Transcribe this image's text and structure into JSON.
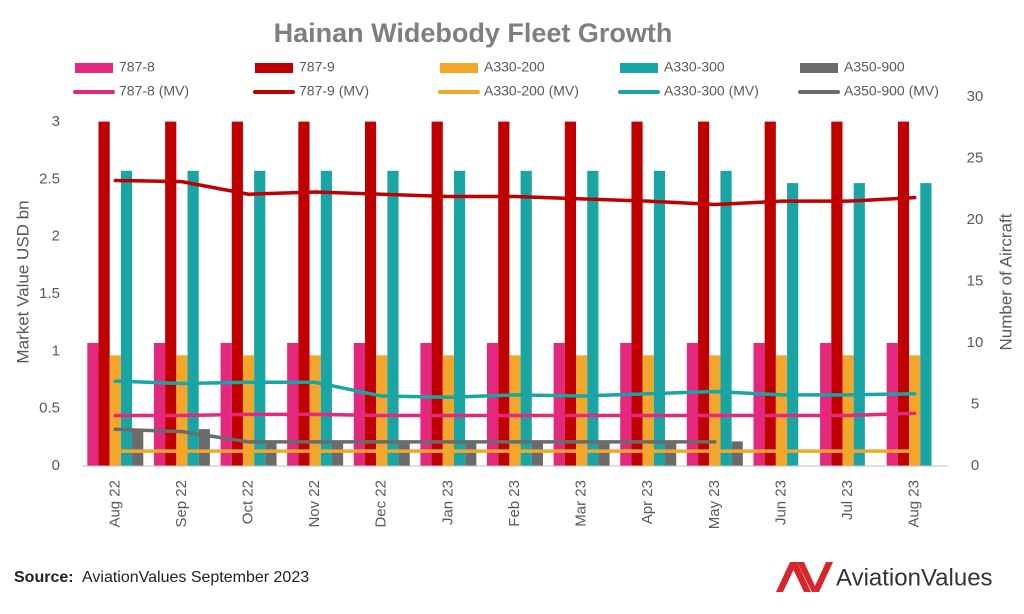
{
  "chart_data": {
    "type": "bar",
    "title": "Hainan Widebody Fleet Growth",
    "y_label": "Market Value USD bn",
    "y2_label": "Number of Aircraft",
    "categories": [
      "Aug 22",
      "Sep 22",
      "Oct 22",
      "Nov 22",
      "Dec 22",
      "Jan 23",
      "Feb 23",
      "Mar 23",
      "Apr 23",
      "May 23",
      "Jun 23",
      "Jul 23",
      "Aug 23"
    ],
    "ylim": [
      0,
      3
    ],
    "yticks": [
      0,
      0.5,
      1,
      1.5,
      2,
      2.5,
      3
    ],
    "y2lim": [
      0,
      30
    ],
    "y2ticks": [
      0,
      5,
      10,
      15,
      20,
      25,
      30
    ],
    "series": [
      {
        "name": "787-8",
        "type": "bar",
        "axis": "y2",
        "color": "#e3287e",
        "values": [
          10,
          10,
          10,
          10,
          10,
          10,
          10,
          10,
          10,
          10,
          10,
          10,
          10
        ]
      },
      {
        "name": "787-9",
        "type": "bar",
        "axis": "y2",
        "color": "#c00000",
        "values": [
          28,
          28,
          28,
          28,
          28,
          28,
          28,
          28,
          28,
          28,
          28,
          28,
          28
        ]
      },
      {
        "name": "A330-200",
        "type": "bar",
        "axis": "y2",
        "color": "#f2a72a",
        "values": [
          9,
          9,
          9,
          9,
          9,
          9,
          9,
          9,
          9,
          9,
          9,
          9,
          9
        ]
      },
      {
        "name": "A330-300",
        "type": "bar",
        "axis": "y2",
        "color": "#1aa5a5",
        "values": [
          24,
          24,
          24,
          24,
          24,
          24,
          24,
          24,
          24,
          24,
          23,
          23,
          23
        ]
      },
      {
        "name": "A350-900",
        "type": "bar",
        "axis": "y2",
        "color": "#6b6b6b",
        "values": [
          3,
          3,
          2,
          2,
          2,
          2,
          2,
          2,
          2,
          2,
          0,
          0,
          0
        ]
      },
      {
        "name": "787-8 (MV)",
        "type": "line",
        "axis": "y",
        "color": "#e3287e",
        "values": [
          0.44,
          0.44,
          0.45,
          0.45,
          0.44,
          0.44,
          0.44,
          0.44,
          0.44,
          0.44,
          0.44,
          0.44,
          0.46
        ]
      },
      {
        "name": "787-9 (MV)",
        "type": "line",
        "axis": "y",
        "color": "#c00000",
        "values": [
          2.49,
          2.48,
          2.37,
          2.39,
          2.37,
          2.35,
          2.35,
          2.33,
          2.31,
          2.28,
          2.31,
          2.31,
          2.34
        ]
      },
      {
        "name": "A330-200 (MV)",
        "type": "line",
        "axis": "y",
        "color": "#f2a72a",
        "values": [
          0.13,
          0.13,
          0.13,
          0.13,
          0.13,
          0.13,
          0.13,
          0.13,
          0.13,
          0.13,
          0.13,
          0.13,
          0.13
        ]
      },
      {
        "name": "A330-300 (MV)",
        "type": "line",
        "axis": "y",
        "color": "#1aa5a5",
        "values": [
          0.74,
          0.72,
          0.73,
          0.73,
          0.61,
          0.6,
          0.62,
          0.61,
          0.63,
          0.65,
          0.62,
          0.62,
          0.63
        ]
      },
      {
        "name": "A350-900 (MV)",
        "type": "line",
        "axis": "y",
        "color": "#6b6b6b",
        "values": [
          0.32,
          0.3,
          0.21,
          0.21,
          0.21,
          0.21,
          0.21,
          0.21,
          0.21,
          0.21,
          null,
          null,
          null
        ]
      }
    ],
    "source_label": "Source:",
    "source": "AviationValues September 2023",
    "logo": "AviationValues"
  }
}
